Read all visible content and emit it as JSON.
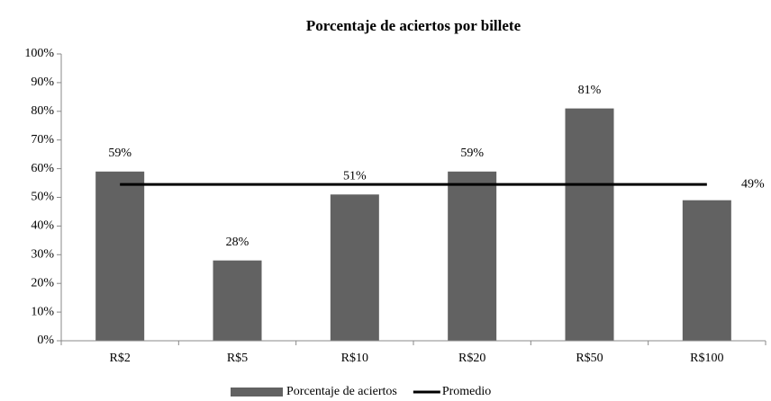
{
  "chart_data": {
    "type": "bar",
    "title": "Porcentaje de aciertos por billete",
    "categories": [
      "R$2",
      "R$5",
      "R$10",
      "R$20",
      "R$50",
      "R$100"
    ],
    "series": [
      {
        "name": "Porcentaje de aciertos",
        "color": "#626262",
        "values": [
          59,
          28,
          51,
          59,
          81,
          49
        ],
        "value_labels": [
          "59%",
          "28%",
          "51%",
          "59%",
          "81%",
          "49%"
        ]
      },
      {
        "name": "Promedio",
        "type": "line",
        "color": "#000000",
        "values": [
          54.5,
          54.5,
          54.5,
          54.5,
          54.5,
          54.5
        ]
      }
    ],
    "ylim": [
      0,
      100
    ],
    "yticks": [
      {
        "value": 0,
        "label": "0%"
      },
      {
        "value": 10,
        "label": "10%"
      },
      {
        "value": 20,
        "label": "20%"
      },
      {
        "value": 30,
        "label": "30%"
      },
      {
        "value": 40,
        "label": "40%"
      },
      {
        "value": 50,
        "label": "50%"
      },
      {
        "value": 60,
        "label": "60%"
      },
      {
        "value": 70,
        "label": "70%"
      },
      {
        "value": 80,
        "label": "80%"
      },
      {
        "value": 90,
        "label": "90%"
      },
      {
        "value": 100,
        "label": "100%"
      }
    ],
    "grid": false,
    "legend": "bottom"
  }
}
